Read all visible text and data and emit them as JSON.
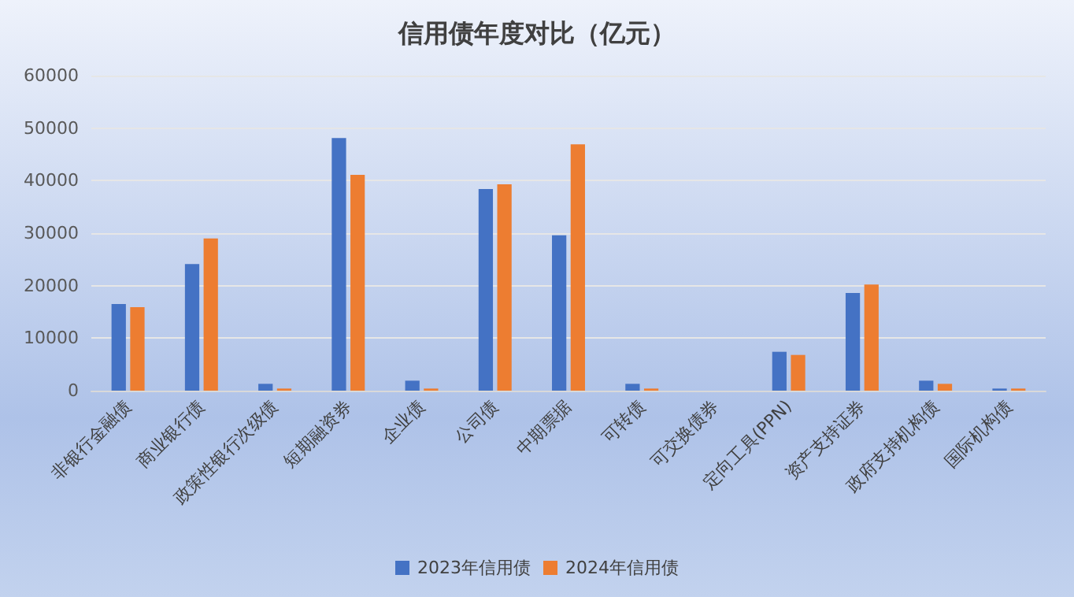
{
  "chart_data": {
    "type": "bar",
    "title": "信用债年度对比（亿元）",
    "categories": [
      "非银行金融债",
      "商业银行债",
      "政策性银行次级债",
      "短期融资券",
      "企业债",
      "公司债",
      "中期票据",
      "可转债",
      "可交换债券",
      "定向工具(PPN)",
      "资产支持证券",
      "政府支持机构债",
      "国际机构债"
    ],
    "series": [
      {
        "name": "2023年信用债",
        "color": "#4472c4",
        "values": [
          16500,
          24100,
          1300,
          48100,
          1900,
          38400,
          29600,
          1300,
          0,
          7400,
          18600,
          1900,
          400
        ]
      },
      {
        "name": "2024年信用债",
        "color": "#ed7d31",
        "values": [
          15900,
          29000,
          400,
          41100,
          400,
          39300,
          46900,
          400,
          0,
          6800,
          20200,
          1300,
          400
        ]
      }
    ],
    "ylim": [
      0,
      60000
    ],
    "yticks": [
      0,
      10000,
      20000,
      30000,
      40000,
      50000,
      60000
    ],
    "grid": "y",
    "legend": "bottom"
  }
}
